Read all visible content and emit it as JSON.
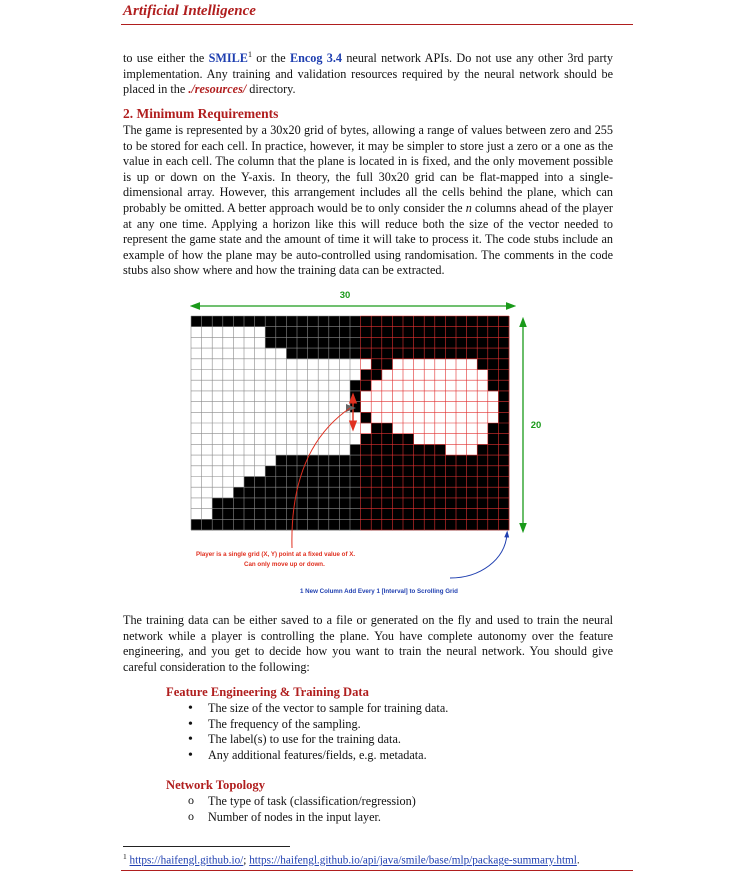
{
  "header": {
    "title": "Artificial Intelligence"
  },
  "intro": {
    "p1": "to use either the ",
    "smile": "SMILE",
    "sup1": "1",
    "p2": " or the ",
    "encog": "Encog 3.4",
    "p3": " neural network APIs. Do not use any other 3rd party implementation. Any training and validation resources required by the neural network should be placed in the ",
    "resources": "./resources/",
    "p4": " directory."
  },
  "section2": {
    "heading": "2. Minimum Requirements",
    "t1": "The game is represented by a 30x20 grid of bytes, allowing a range of values between zero and 255 to be stored for each cell. In practice, however, it may be simpler to store just a zero or a one as the value in each cell. The column that the plane is located in is fixed, and the only movement possible is up or down on the Y-axis. In theory, the full 30x20 grid can be flat-mapped into a single-dimensional array. However, this arrangement includes all the cells behind the plane, which can probably be omitted. A better approach would be to only consider the ",
    "n": "n",
    "t2": " columns ahead of the player at any one time. Applying a horizon like this will reduce both the size of the vector needed to represent the game state and the amount of time it will take to process it. The code stubs include an example of how the plane may be auto-controlled using randomisation. The comments in the code stubs also show where and how the training data can be extracted."
  },
  "figure": {
    "width_label": "30",
    "height_label": "20",
    "player_note_line1": "Player is a single grid (X, Y) point at a fixed value of X.",
    "player_note_line2": "Can only move up or down.",
    "scroll_note": "1 New Column Add Every 1 [Interval] to Scrolling Grid",
    "colors": {
      "grid_line_left": "#8a8a8a",
      "grid_line_right": "#e03030",
      "accent_green": "#1a9a1a",
      "note_red": "#e03020",
      "note_blue": "#1f3fb0"
    },
    "grid_rows": [
      "111111111111111111111111111111",
      "000000011111111111111111111111",
      "000000011111111111111111111111",
      "000000000111111111111111111111",
      "000000000000000001100000000111",
      "000000000000000011000000000011",
      "000000000000000110000000000011",
      "000000000000000100000000000001",
      "000000000000000100000000000001",
      "000000000000000010000000000001",
      "000000000000000001100000000011",
      "000000000000000011111000000011",
      "000000000000000111111111000111",
      "000000001111111111111111111111",
      "000000011111111111111111111111",
      "000001111111111111111111111111",
      "000011111111111111111111111111",
      "001111111111111111111111111111",
      "001111111111111111111111111111",
      "111111111111111111111111111111"
    ],
    "player_cell": {
      "col": 15,
      "row": 8
    }
  },
  "training": {
    "text": "The training data can be either saved to a file or generated on the fly and used to train the neural network while a player is controlling the plane. You have complete autonomy over the feature engineering, and you get to decide how you want to train the neural network. You should give careful consideration to the following:"
  },
  "feature_engineering": {
    "heading": "Feature Engineering & Training Data",
    "items": [
      "The size of the vector to sample for training data.",
      "The frequency of the sampling.",
      "The label(s) to use for the training data.",
      "Any additional features/fields, e.g. metadata."
    ]
  },
  "network_topology": {
    "heading": "Network Topology",
    "items": [
      "The type of task (classification/regression)",
      "Number of nodes in the input layer."
    ]
  },
  "footnote": {
    "mark": "1",
    "link1": "https://haifengl.github.io/",
    "sep": "; ",
    "link2": "https://haifengl.github.io/api/java/smile/base/mlp/package-summary.html",
    "end": "."
  }
}
